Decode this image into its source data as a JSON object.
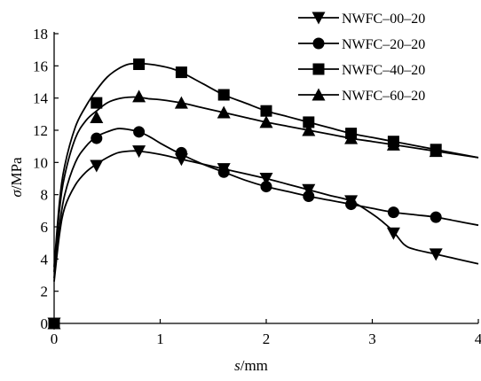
{
  "chart_data": {
    "type": "line",
    "xlabel_symbol": "s",
    "xlabel_unit": "/mm",
    "ylabel_symbol": "σ",
    "ylabel_unit": "/MPa",
    "xlim": [
      0,
      4
    ],
    "ylim": [
      0,
      18
    ],
    "xticks": [
      0,
      1,
      2,
      3,
      4
    ],
    "yticks": [
      0,
      2,
      4,
      6,
      8,
      10,
      12,
      14,
      16,
      18
    ],
    "grid": false,
    "legend_position": "top-right",
    "series": [
      {
        "name": "NWFC–00–20",
        "marker": "triangle-down",
        "points": [
          [
            0,
            0
          ],
          [
            0.4,
            9.8
          ],
          [
            0.8,
            10.7
          ],
          [
            1.2,
            10.2
          ],
          [
            1.6,
            9.6
          ],
          [
            2.0,
            9.0
          ],
          [
            2.4,
            8.3
          ],
          [
            2.8,
            7.6
          ],
          [
            3.2,
            5.6
          ],
          [
            3.6,
            4.3
          ]
        ],
        "curve": [
          [
            0,
            2.6
          ],
          [
            0.05,
            5.5
          ],
          [
            0.1,
            7.2
          ],
          [
            0.2,
            8.6
          ],
          [
            0.3,
            9.4
          ],
          [
            0.4,
            9.9
          ],
          [
            0.5,
            10.3
          ],
          [
            0.6,
            10.6
          ],
          [
            0.7,
            10.7
          ],
          [
            0.8,
            10.7
          ],
          [
            1.0,
            10.5
          ],
          [
            1.2,
            10.2
          ],
          [
            1.4,
            9.9
          ],
          [
            1.6,
            9.6
          ],
          [
            1.8,
            9.3
          ],
          [
            2.0,
            9.0
          ],
          [
            2.2,
            8.65
          ],
          [
            2.4,
            8.3
          ],
          [
            2.6,
            7.95
          ],
          [
            2.8,
            7.6
          ],
          [
            3.0,
            6.8
          ],
          [
            3.1,
            6.3
          ],
          [
            3.2,
            5.7
          ],
          [
            3.3,
            4.9
          ],
          [
            3.4,
            4.6
          ],
          [
            3.6,
            4.3
          ],
          [
            3.8,
            4.0
          ],
          [
            4.0,
            3.7
          ]
        ]
      },
      {
        "name": "NWFC–20–20",
        "marker": "circle",
        "points": [
          [
            0,
            0
          ],
          [
            0.4,
            11.5
          ],
          [
            0.8,
            11.9
          ],
          [
            1.2,
            10.6
          ],
          [
            1.6,
            9.4
          ],
          [
            2.0,
            8.5
          ],
          [
            2.4,
            7.9
          ],
          [
            2.8,
            7.4
          ],
          [
            3.2,
            6.9
          ],
          [
            3.6,
            6.6
          ]
        ],
        "curve": [
          [
            0,
            2.8
          ],
          [
            0.05,
            6.0
          ],
          [
            0.1,
            8.0
          ],
          [
            0.2,
            10.0
          ],
          [
            0.3,
            11.0
          ],
          [
            0.4,
            11.6
          ],
          [
            0.5,
            11.9
          ],
          [
            0.6,
            12.1
          ],
          [
            0.7,
            12.05
          ],
          [
            0.8,
            11.9
          ],
          [
            0.9,
            11.6
          ],
          [
            1.0,
            11.2
          ],
          [
            1.2,
            10.5
          ],
          [
            1.4,
            9.9
          ],
          [
            1.6,
            9.4
          ],
          [
            1.8,
            8.9
          ],
          [
            2.0,
            8.5
          ],
          [
            2.2,
            8.2
          ],
          [
            2.4,
            7.9
          ],
          [
            2.6,
            7.65
          ],
          [
            2.8,
            7.4
          ],
          [
            3.0,
            7.15
          ],
          [
            3.2,
            6.9
          ],
          [
            3.4,
            6.75
          ],
          [
            3.6,
            6.6
          ],
          [
            3.8,
            6.35
          ],
          [
            4.0,
            6.1
          ]
        ]
      },
      {
        "name": "NWFC–40–20",
        "marker": "square",
        "points": [
          [
            0,
            0
          ],
          [
            0.4,
            13.7
          ],
          [
            0.8,
            16.1
          ],
          [
            1.2,
            15.6
          ],
          [
            1.6,
            14.2
          ],
          [
            2.0,
            13.2
          ],
          [
            2.4,
            12.5
          ],
          [
            2.8,
            11.8
          ],
          [
            3.2,
            11.3
          ],
          [
            3.6,
            10.8
          ]
        ],
        "curve": [
          [
            0,
            3.5
          ],
          [
            0.05,
            7.5
          ],
          [
            0.1,
            9.8
          ],
          [
            0.2,
            12.2
          ],
          [
            0.3,
            13.5
          ],
          [
            0.4,
            14.5
          ],
          [
            0.5,
            15.3
          ],
          [
            0.6,
            15.8
          ],
          [
            0.7,
            16.1
          ],
          [
            0.8,
            16.15
          ],
          [
            0.9,
            16.1
          ],
          [
            1.0,
            16.0
          ],
          [
            1.1,
            15.85
          ],
          [
            1.2,
            15.6
          ],
          [
            1.4,
            14.9
          ],
          [
            1.6,
            14.2
          ],
          [
            1.8,
            13.7
          ],
          [
            2.0,
            13.2
          ],
          [
            2.2,
            12.85
          ],
          [
            2.4,
            12.5
          ],
          [
            2.6,
            12.15
          ],
          [
            2.8,
            11.8
          ],
          [
            3.0,
            11.55
          ],
          [
            3.2,
            11.3
          ],
          [
            3.4,
            11.05
          ],
          [
            3.6,
            10.8
          ],
          [
            3.8,
            10.55
          ],
          [
            4.0,
            10.3
          ]
        ]
      },
      {
        "name": "NWFC–60–20",
        "marker": "triangle-up",
        "points": [
          [
            0,
            0
          ],
          [
            0.4,
            12.8
          ],
          [
            0.8,
            14.1
          ],
          [
            1.2,
            13.7
          ],
          [
            1.6,
            13.1
          ],
          [
            2.0,
            12.5
          ],
          [
            2.4,
            12.0
          ],
          [
            2.8,
            11.5
          ],
          [
            3.2,
            11.1
          ],
          [
            3.6,
            10.7
          ]
        ],
        "curve": [
          [
            0,
            3.2
          ],
          [
            0.05,
            7.0
          ],
          [
            0.1,
            9.2
          ],
          [
            0.2,
            11.5
          ],
          [
            0.3,
            12.6
          ],
          [
            0.4,
            13.2
          ],
          [
            0.5,
            13.7
          ],
          [
            0.6,
            13.95
          ],
          [
            0.7,
            14.05
          ],
          [
            0.8,
            14.05
          ],
          [
            0.9,
            13.95
          ],
          [
            1.0,
            13.9
          ],
          [
            1.2,
            13.7
          ],
          [
            1.4,
            13.4
          ],
          [
            1.6,
            13.1
          ],
          [
            1.8,
            12.8
          ],
          [
            2.0,
            12.5
          ],
          [
            2.2,
            12.25
          ],
          [
            2.4,
            12.0
          ],
          [
            2.6,
            11.75
          ],
          [
            2.8,
            11.5
          ],
          [
            3.0,
            11.3
          ],
          [
            3.2,
            11.1
          ],
          [
            3.4,
            10.9
          ],
          [
            3.6,
            10.7
          ],
          [
            3.8,
            10.5
          ],
          [
            4.0,
            10.3
          ]
        ]
      }
    ]
  }
}
